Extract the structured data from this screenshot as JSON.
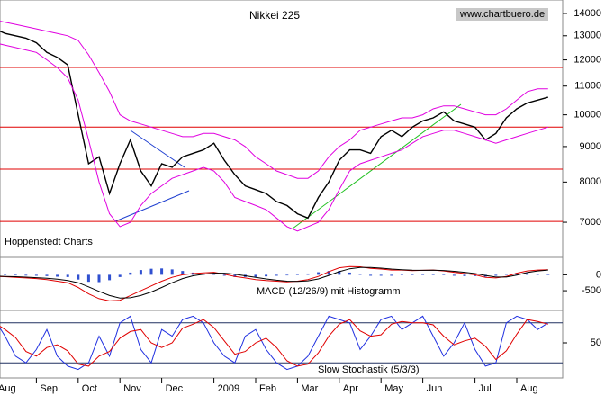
{
  "chart_data": [
    {
      "type": "line",
      "title": "Nikkei 225",
      "source": "www.chartbuero.de",
      "credit": "Hoppenstedt Charts",
      "categories": [
        "Aug",
        null,
        null,
        null,
        "Sep",
        null,
        null,
        null,
        "Oct",
        null,
        null,
        null,
        "Nov",
        null,
        null,
        null,
        "Dec",
        null,
        null,
        null,
        null,
        "2009",
        null,
        null,
        null,
        "Feb",
        null,
        null,
        null,
        "Mar",
        null,
        null,
        null,
        "Apr",
        null,
        null,
        null,
        "May",
        null,
        null,
        null,
        "Jun",
        null,
        null,
        null,
        null,
        "Jul",
        null,
        null,
        null,
        "Aug",
        null,
        null,
        null
      ],
      "series": [
        {
          "color": "#000000",
          "values": [
            13300,
            13100,
            13000,
            12900,
            12700,
            12300,
            12100,
            11800,
            10000,
            8500,
            8700,
            7700,
            8500,
            9200,
            8300,
            7900,
            8500,
            8400,
            8700,
            8800,
            8900,
            9100,
            8600,
            8200,
            7900,
            7800,
            7700,
            7500,
            7400,
            7200,
            7100,
            7600,
            8000,
            8600,
            8900,
            8900,
            8800,
            9300,
            9500,
            9300,
            9600,
            9800,
            9900,
            10100,
            9800,
            9700,
            9600,
            9200,
            9400,
            9900,
            10200,
            10400,
            10500,
            10600
          ]
        },
        {
          "color": "#e000e0",
          "values": [
            13700,
            13600,
            13500,
            13400,
            13300,
            13200,
            13100,
            13000,
            12800,
            12200,
            11500,
            10800,
            10000,
            9800,
            9700,
            9600,
            9500,
            9400,
            9300,
            9300,
            9400,
            9400,
            9300,
            9200,
            9000,
            8700,
            8500,
            8300,
            8200,
            8100,
            8100,
            8300,
            8700,
            9000,
            9200,
            9500,
            9600,
            9700,
            9800,
            9900,
            9900,
            10000,
            10200,
            10300,
            10300,
            10200,
            10100,
            10000,
            10000,
            10200,
            10500,
            10800,
            10900,
            10900
          ]
        },
        {
          "color": "#e000e0",
          "values": [
            12700,
            12600,
            12500,
            12400,
            12300,
            12000,
            11700,
            11300,
            10500,
            9200,
            8000,
            7200,
            6900,
            7000,
            7400,
            7700,
            7900,
            8100,
            8200,
            8300,
            8400,
            8300,
            8000,
            7600,
            7500,
            7400,
            7300,
            7100,
            6900,
            6800,
            6900,
            7000,
            7300,
            7800,
            8300,
            8500,
            8600,
            8700,
            8800,
            8900,
            9100,
            9300,
            9400,
            9500,
            9500,
            9400,
            9300,
            9200,
            9100,
            9200,
            9300,
            9400,
            9500,
            9600
          ]
        }
      ],
      "levels": [
        11700,
        9600,
        8350,
        7020
      ],
      "level_color": "#e00000",
      "log_scale": true,
      "ylim": [
        6250,
        14640
      ],
      "yticks": [
        7000,
        8000,
        9000,
        10000,
        11000,
        12000,
        13000,
        14000
      ]
    },
    {
      "type": "line",
      "title": "MACD (12/26/9) mit Histogramm",
      "series": [
        {
          "color": "#e00000",
          "values": [
            -50,
            -60,
            -80,
            -100,
            -120,
            -150,
            -200,
            -250,
            -400,
            -600,
            -750,
            -820,
            -800,
            -650,
            -500,
            -350,
            -200,
            -80,
            0,
            40,
            60,
            80,
            20,
            -50,
            -100,
            -150,
            -180,
            -200,
            -220,
            -200,
            -150,
            -50,
            100,
            220,
            260,
            250,
            200,
            180,
            150,
            150,
            130,
            140,
            150,
            120,
            80,
            40,
            0,
            -80,
            -100,
            -50,
            50,
            120,
            150,
            160
          ]
        },
        {
          "color": "#000000",
          "values": [
            -40,
            -50,
            -60,
            -75,
            -90,
            -110,
            -140,
            -180,
            -250,
            -380,
            -520,
            -650,
            -730,
            -720,
            -650,
            -540,
            -400,
            -250,
            -120,
            -30,
            20,
            50,
            50,
            20,
            -30,
            -80,
            -130,
            -170,
            -200,
            -210,
            -190,
            -130,
            -20,
            100,
            190,
            230,
            230,
            210,
            180,
            160,
            145,
            140,
            145,
            135,
            110,
            80,
            40,
            -20,
            -70,
            -70,
            -10,
            70,
            120,
            150
          ]
        }
      ],
      "histogram": {
        "color": "#3050d0",
        "values": [
          -10,
          -10,
          -20,
          -25,
          -30,
          -40,
          -60,
          -70,
          -150,
          -220,
          -230,
          -170,
          -70,
          70,
          150,
          190,
          200,
          170,
          120,
          70,
          40,
          30,
          -30,
          -70,
          -70,
          -70,
          -50,
          -30,
          -20,
          10,
          40,
          80,
          120,
          120,
          70,
          20,
          -30,
          -30,
          -30,
          -10,
          -15,
          0,
          5,
          -15,
          -30,
          -40,
          -40,
          -60,
          -30,
          20,
          60,
          50,
          30,
          10
        ]
      },
      "ylim": [
        -1120,
        520
      ],
      "yticks": [
        0,
        -500
      ]
    },
    {
      "type": "line",
      "title": "Slow Stochastik (5/3/3)",
      "series": [
        {
          "color": "#2030e0",
          "values": [
            85,
            60,
            30,
            20,
            40,
            70,
            30,
            15,
            10,
            20,
            60,
            30,
            80,
            90,
            40,
            20,
            70,
            60,
            85,
            90,
            80,
            50,
            30,
            20,
            60,
            70,
            40,
            20,
            10,
            15,
            30,
            60,
            90,
            85,
            80,
            40,
            60,
            85,
            90,
            70,
            80,
            90,
            60,
            30,
            50,
            80,
            40,
            15,
            20,
            80,
            90,
            85,
            70,
            80
          ]
        },
        {
          "color": "#e00000",
          "values": [
            80,
            70,
            58,
            37,
            30,
            43,
            47,
            38,
            18,
            15,
            30,
            37,
            57,
            67,
            70,
            50,
            43,
            50,
            72,
            78,
            85,
            73,
            53,
            33,
            37,
            50,
            57,
            43,
            23,
            15,
            18,
            35,
            60,
            78,
            85,
            68,
            60,
            62,
            78,
            82,
            80,
            80,
            77,
            60,
            47,
            53,
            57,
            45,
            25,
            38,
            63,
            85,
            82,
            78
          ]
        }
      ],
      "levels": [
        80,
        20
      ],
      "level_color": "#203060",
      "ylim": [
        0,
        100
      ],
      "yticks": [
        50
      ]
    }
  ]
}
